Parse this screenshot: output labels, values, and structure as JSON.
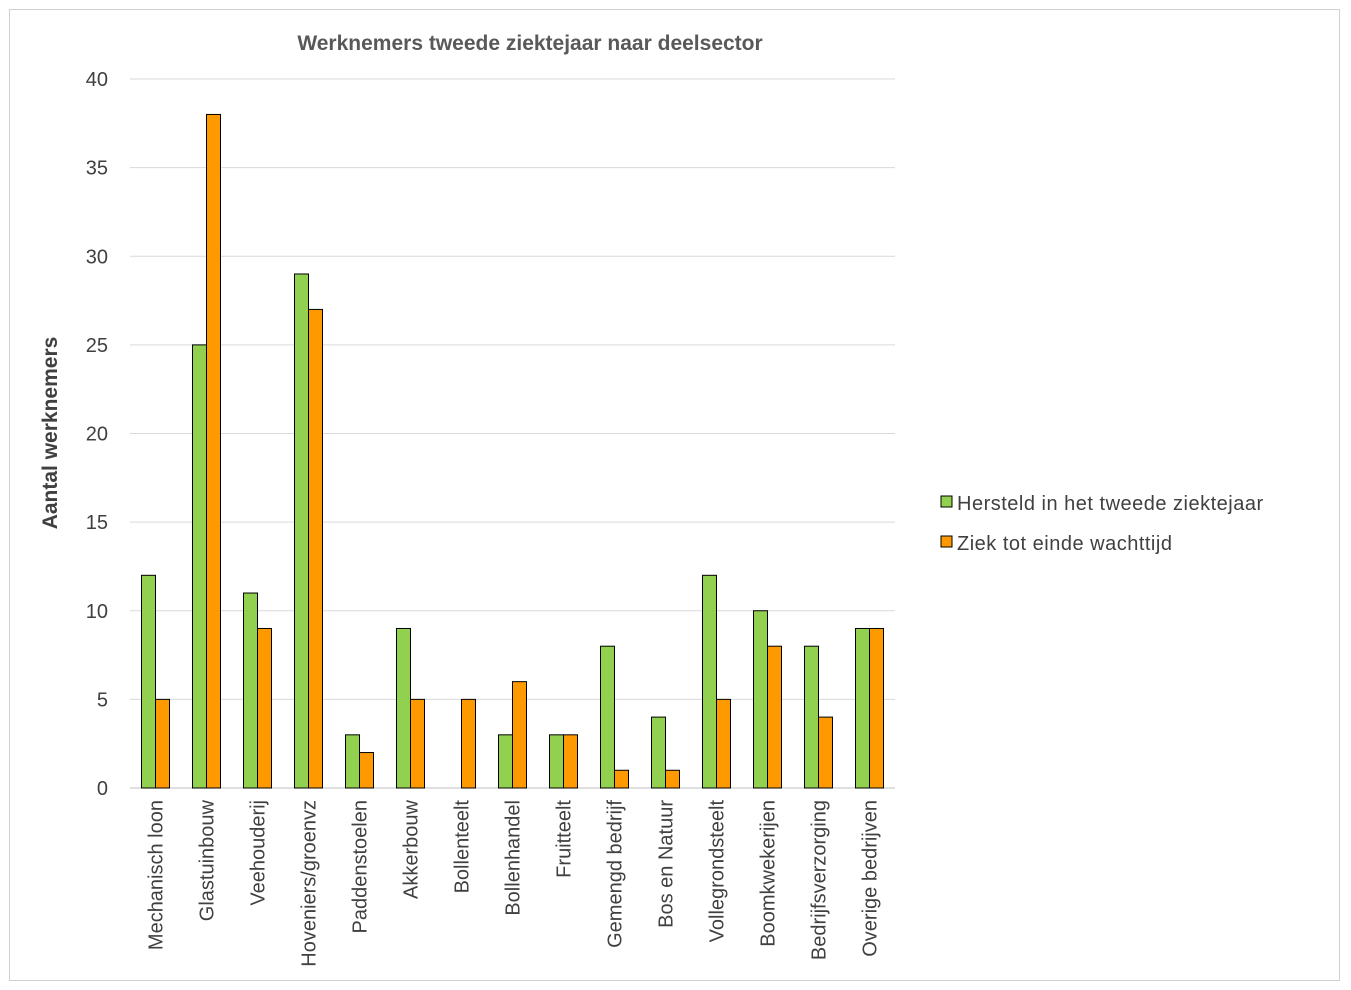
{
  "chart_data": {
    "type": "bar",
    "title": "Werknemers tweede ziektejaar naar deelsector",
    "xlabel": "",
    "ylabel": "Aantal werknemers",
    "ylim": [
      0,
      40
    ],
    "yticks": [
      0,
      5,
      10,
      15,
      20,
      25,
      30,
      35,
      40
    ],
    "grid": true,
    "legend_position": "right",
    "categories": [
      "Mechanisch loon",
      "Glastuinbouw",
      "Veehouderij",
      "Hoveniers/groenvz",
      "Paddenstoelen",
      "Akkerbouw",
      "Bollenteelt",
      "Bollenhandel",
      "Fruitteelt",
      "Gemengd bedrijf",
      "Bos en Natuur",
      "Vollegrondsteelt",
      "Boomkwekerijen",
      "Bedrijfsverzorging",
      "Overige bedrijven"
    ],
    "series": [
      {
        "name": "Hersteld in het tweede ziektejaar",
        "color": "#92d050",
        "values": [
          12,
          25,
          11,
          29,
          3,
          9,
          0,
          3,
          3,
          8,
          4,
          12,
          10,
          8,
          9
        ]
      },
      {
        "name": "Ziek tot einde wachttijd",
        "color": "#ff9900",
        "values": [
          5,
          38,
          9,
          27,
          2,
          5,
          5,
          6,
          3,
          1,
          1,
          5,
          8,
          4,
          9
        ]
      }
    ]
  }
}
